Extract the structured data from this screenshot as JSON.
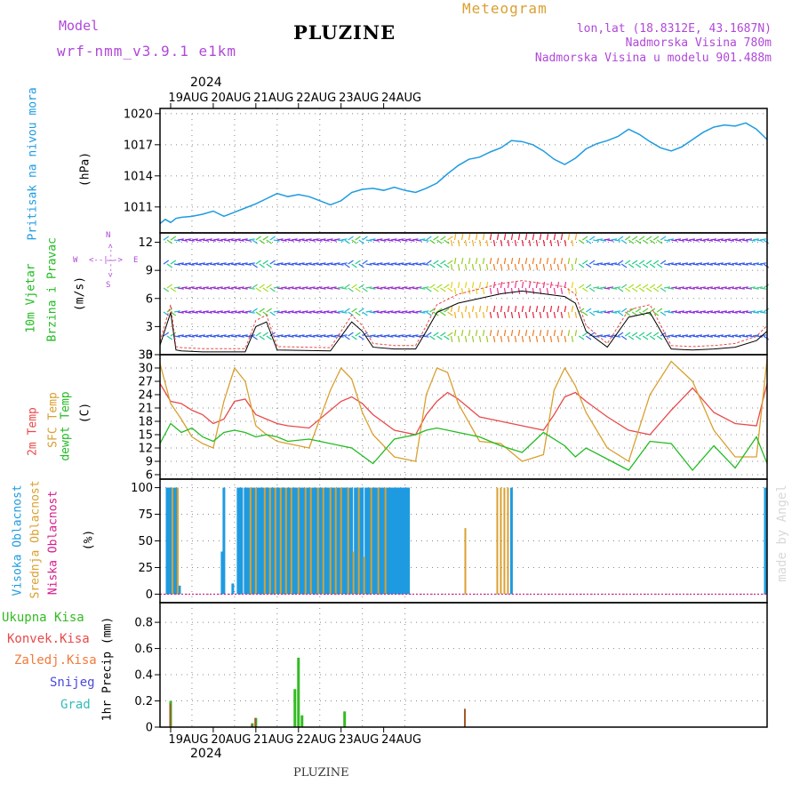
{
  "header": {
    "model_label": "Model",
    "model_name": "wrf-nmm_v3.9.1 e1km",
    "title": "PLUZINE",
    "meteogram": "Meteogram",
    "lonlat": "lon,lat (18.8312E, 43.1687N)",
    "elevation": "Nadmorska Visina 780m",
    "model_elevation": "Nadmorska Visina u modelu 901.488m",
    "footer_title": "PLUZINE",
    "watermark": "made by Angel"
  },
  "colors": {
    "pressure": "#1e9be0",
    "wind_label": "#22bb22",
    "temp2m": "#e84a4a",
    "sfc": "#d9a030",
    "dewpt": "#22bb22",
    "high_cloud": "#1e9be0",
    "mid_cloud": "#d9a030",
    "low_cloud": "#d61b8a",
    "total_precip": "#33bb22",
    "conv_precip": "#e84a4a",
    "frozen_precip": "#f07a3a",
    "snow": "#4a4adc",
    "hail": "#33bbbb",
    "meta_text": "#b048d8",
    "meteogram_text": "#d9a030"
  },
  "axes": {
    "year": "2024",
    "dates": [
      "19AUG",
      "20AUG",
      "21AUG",
      "22AUG",
      "23AUG",
      "24AUG"
    ]
  },
  "panels": {
    "pressure": {
      "label1": "Pritisak na nivou mora",
      "unit": "(hPa)",
      "ticks": [
        "1020",
        "1017",
        "1014",
        "1011"
      ]
    },
    "wind": {
      "label1": "10m Vjetar",
      "label2": "Brzina i Pravac",
      "unit": "(m/s)",
      "ticks": [
        "12",
        "9",
        "6",
        "3",
        "0"
      ],
      "compass_n": "N",
      "compass_w": "W",
      "compass_e": "E",
      "compass_s": "S",
      "compass_arrow_ns": "<--|-->",
      "compass_arrow_we": "<--|-->"
    },
    "temp": {
      "label1": "2m Temp",
      "label2": "SFC Temp",
      "label3": "dewpt Temp",
      "unit": "(C)",
      "ticks": [
        "33",
        "30",
        "27",
        "24",
        "21",
        "18",
        "15",
        "12",
        "9",
        "6"
      ]
    },
    "cloud": {
      "label1": "Visoka Oblacnost",
      "label2": "Srednja Oblacnost",
      "label3": "Niska Oblacnost",
      "unit": "(%)",
      "ticks": [
        "100",
        "75",
        "50",
        "25",
        "0"
      ]
    },
    "precip": {
      "legend": [
        "Ukupna Kisa",
        "Konvek.Kisa",
        "Zaledj.Kisa",
        "Snijeg",
        "Grad"
      ],
      "unit": "1hr Precip (mm)",
      "ticks": [
        "0.8",
        "0.6",
        "0.4",
        "0.2",
        "0"
      ]
    }
  },
  "chart_data": [
    {
      "type": "line",
      "title": "",
      "ylabel": "(hPa)",
      "ylim": [
        1008.5,
        1020.5
      ],
      "series": [
        {
          "name": "Pritisak na nivou mora",
          "x": [
            0,
            3,
            6,
            9,
            12,
            18,
            24,
            30,
            36,
            42,
            48,
            54,
            60,
            66,
            72,
            78,
            84,
            90,
            96,
            102,
            108,
            114,
            120,
            126,
            132,
            138,
            144,
            150,
            156,
            162,
            168,
            174,
            180,
            186,
            192,
            198,
            204,
            210,
            216,
            222,
            228,
            234,
            240,
            246,
            252,
            258,
            264,
            270,
            276,
            282,
            288,
            294,
            300,
            306,
            312,
            318,
            324,
            330,
            336,
            342
          ],
          "values": [
            1009.4,
            1009.8,
            1009.5,
            1009.9,
            1010.0,
            1010.1,
            1010.3,
            1010.6,
            1010.1,
            1010.5,
            1010.9,
            1011.3,
            1011.8,
            1012.3,
            1012.0,
            1012.2,
            1012.0,
            1011.6,
            1011.2,
            1011.6,
            1012.4,
            1012.7,
            1012.8,
            1012.6,
            1012.9,
            1012.6,
            1012.4,
            1012.8,
            1013.3,
            1014.2,
            1015.0,
            1015.6,
            1015.8,
            1016.3,
            1016.7,
            1017.4,
            1017.3,
            1017.0,
            1016.4,
            1015.6,
            1015.1,
            1015.7,
            1016.6,
            1017.1,
            1017.4,
            1017.8,
            1018.5,
            1018.0,
            1017.3,
            1016.7,
            1016.4,
            1016.8,
            1017.5,
            1018.2,
            1018.7,
            1018.9,
            1018.8,
            1019.1,
            1018.5,
            1017.5
          ]
        }
      ]
    },
    {
      "type": "line",
      "title": "",
      "ylabel": "(m/s)",
      "ylim": [
        0,
        13
      ],
      "series": [
        {
          "name": "10m Vjetar",
          "x": [
            0,
            6,
            9,
            12,
            24,
            48,
            54,
            60,
            66,
            96,
            108,
            114,
            120,
            132,
            144,
            150,
            156,
            168,
            180,
            192,
            204,
            216,
            228,
            234,
            240,
            252,
            264,
            276,
            288,
            300,
            312,
            324,
            336,
            342
          ],
          "values": [
            1.0,
            4.5,
            0.5,
            0.4,
            0.3,
            0.3,
            3.0,
            3.5,
            0.5,
            0.4,
            3.5,
            2.5,
            0.8,
            0.6,
            0.6,
            2.5,
            4.5,
            5.5,
            6.0,
            6.5,
            6.8,
            6.5,
            6.2,
            5.5,
            2.5,
            0.8,
            4.0,
            4.5,
            0.6,
            0.5,
            0.6,
            0.8,
            1.5,
            2.5
          ]
        }
      ]
    },
    {
      "type": "line",
      "title": "",
      "ylabel": "(C)",
      "ylim": [
        5,
        33
      ],
      "series": [
        {
          "name": "2m Temp",
          "x": [
            0,
            6,
            12,
            18,
            24,
            30,
            36,
            42,
            48,
            54,
            60,
            66,
            72,
            84,
            96,
            102,
            108,
            114,
            120,
            132,
            144,
            150,
            156,
            162,
            168,
            180,
            192,
            204,
            216,
            222,
            228,
            234,
            240,
            252,
            264,
            276,
            288,
            300,
            312,
            324,
            336,
            342
          ],
          "values": [
            26.5,
            22.5,
            22.0,
            20.5,
            19.5,
            17.5,
            18.5,
            22.5,
            23.0,
            19.5,
            18.5,
            17.5,
            17.0,
            16.5,
            20.5,
            22.5,
            23.5,
            22.0,
            19.5,
            16.0,
            15.0,
            19.5,
            22.5,
            24.5,
            23.0,
            19.0,
            18.0,
            17.0,
            16.0,
            19.5,
            23.5,
            24.5,
            22.5,
            19.0,
            16.0,
            15.0,
            20.5,
            25.5,
            20.0,
            17.5,
            17.0,
            26.5
          ]
        },
        {
          "name": "SFC Temp",
          "x": [
            0,
            6,
            12,
            18,
            24,
            30,
            36,
            42,
            48,
            54,
            60,
            66,
            72,
            84,
            96,
            102,
            108,
            114,
            120,
            132,
            144,
            150,
            156,
            162,
            168,
            180,
            192,
            204,
            216,
            222,
            228,
            234,
            240,
            252,
            264,
            276,
            288,
            300,
            312,
            324,
            336,
            342
          ],
          "values": [
            31.0,
            22.0,
            18.5,
            14.5,
            13.0,
            12.0,
            22.5,
            30.0,
            27.0,
            17.0,
            15.0,
            13.5,
            13.0,
            12.0,
            25.0,
            30.0,
            27.5,
            20.0,
            15.0,
            10.0,
            9.0,
            24.0,
            30.0,
            29.0,
            22.0,
            13.5,
            13.0,
            9.0,
            10.5,
            25.0,
            30.0,
            26.0,
            20.0,
            12.0,
            9.0,
            24.0,
            31.5,
            27.0,
            16.0,
            10.0,
            10.0,
            32.0
          ]
        },
        {
          "name": "dewpt Temp",
          "x": [
            0,
            6,
            12,
            18,
            24,
            30,
            36,
            42,
            48,
            54,
            60,
            66,
            72,
            84,
            96,
            108,
            120,
            132,
            144,
            150,
            156,
            168,
            180,
            192,
            204,
            216,
            228,
            234,
            240,
            252,
            264,
            276,
            288,
            300,
            312,
            324,
            336,
            342
          ],
          "values": [
            13.0,
            17.5,
            15.5,
            16.5,
            14.5,
            13.5,
            15.5,
            16.0,
            15.5,
            14.5,
            15.0,
            14.5,
            13.5,
            14.0,
            13.0,
            12.0,
            8.5,
            14.0,
            15.0,
            16.0,
            16.5,
            15.5,
            14.5,
            12.5,
            11.0,
            15.5,
            12.5,
            10.0,
            12.0,
            9.5,
            7.0,
            13.5,
            13.0,
            7.0,
            12.5,
            7.5,
            14.5,
            8.5
          ]
        }
      ]
    },
    {
      "type": "bar",
      "title": "",
      "ylabel": "(%)",
      "ylim": [
        0,
        100
      ],
      "series": [
        {
          "name": "Visoka Oblacnost",
          "x": [
            4,
            5,
            6,
            8,
            9,
            11,
            35,
            36,
            41,
            44,
            45,
            46,
            48,
            49,
            50,
            52,
            53,
            55,
            56,
            57,
            58,
            60,
            61,
            63,
            64,
            66,
            67,
            69,
            70,
            72,
            73,
            75,
            76,
            77,
            79,
            80,
            81,
            83,
            84,
            86,
            87,
            88,
            90,
            91,
            93,
            94,
            95,
            97,
            98,
            100,
            101,
            103,
            104,
            105,
            107,
            108,
            110,
            111,
            113,
            114,
            116,
            117,
            118,
            120,
            121,
            122,
            124,
            125,
            126,
            128,
            129,
            130,
            131,
            132,
            133,
            134,
            135,
            136,
            137,
            138,
            139,
            140,
            198,
            341
          ],
          "values": [
            100,
            100,
            100,
            100,
            100,
            8,
            40,
            100,
            10,
            100,
            100,
            100,
            100,
            100,
            100,
            100,
            100,
            100,
            100,
            100,
            100,
            100,
            100,
            100,
            100,
            100,
            100,
            100,
            100,
            100,
            100,
            100,
            100,
            100,
            100,
            100,
            100,
            100,
            100,
            100,
            100,
            100,
            100,
            100,
            100,
            100,
            100,
            100,
            100,
            100,
            100,
            100,
            100,
            100,
            100,
            100,
            100,
            100,
            100,
            100,
            100,
            100,
            100,
            100,
            100,
            100,
            100,
            100,
            100,
            100,
            100,
            100,
            100,
            100,
            100,
            100,
            100,
            100,
            100,
            100,
            100,
            100,
            100,
            100
          ]
        },
        {
          "name": "Srednja Oblacnost",
          "x": [
            7,
            10,
            51,
            54,
            59,
            62,
            65,
            68,
            71,
            74,
            78,
            82,
            85,
            89,
            92,
            96,
            99,
            102,
            106,
            109,
            112,
            115,
            119,
            123,
            127,
            172,
            190,
            192,
            194,
            196
          ],
          "values": [
            100,
            100,
            100,
            100,
            100,
            100,
            100,
            100,
            100,
            100,
            100,
            100,
            100,
            100,
            100,
            100,
            100,
            100,
            100,
            40,
            100,
            35,
            100,
            100,
            100,
            62,
            100,
            100,
            100,
            100
          ]
        },
        {
          "name": "Niska Oblacnost",
          "x": [
            0,
            342
          ],
          "values": [
            0,
            0
          ]
        }
      ]
    },
    {
      "type": "bar",
      "title": "",
      "ylabel": "1hr Precip (mm)",
      "ylim": [
        0,
        0.95
      ],
      "series": [
        {
          "name": "Ukupna Kisa",
          "x": [
            6,
            52,
            54,
            76,
            78,
            80,
            104
          ],
          "values": [
            0.2,
            0.03,
            0.07,
            0.29,
            0.53,
            0.09,
            0.12
          ]
        },
        {
          "name": "Konvek.Kisa",
          "x": [
            6,
            52,
            54,
            172
          ],
          "values": [
            0.18,
            0.02,
            0.07,
            0.14
          ]
        }
      ]
    }
  ]
}
